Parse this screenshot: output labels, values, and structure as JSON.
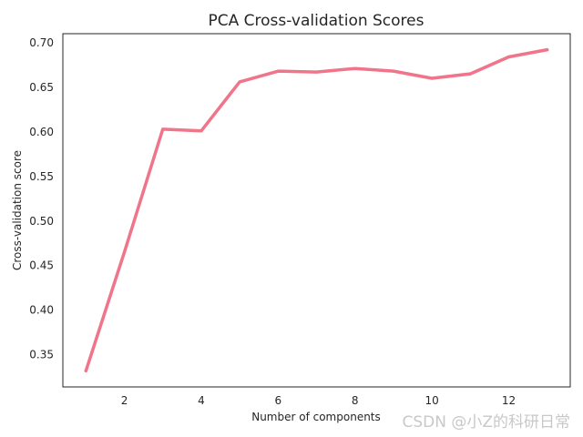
{
  "chart_data": {
    "type": "line",
    "title": "PCA Cross-validation Scores",
    "xlabel": "Number of components",
    "ylabel": "Cross-validation score",
    "x": [
      1,
      2,
      3,
      4,
      5,
      6,
      7,
      8,
      9,
      10,
      11,
      12,
      13
    ],
    "series": [
      {
        "values": [
          0.332,
          0.465,
          0.603,
          0.601,
          0.656,
          0.668,
          0.667,
          0.671,
          0.668,
          0.66,
          0.665,
          0.684,
          0.692
        ],
        "color": "#f0748a"
      }
    ],
    "xticks": [
      2,
      4,
      6,
      8,
      10,
      12
    ],
    "xtick_labels": [
      "2",
      "4",
      "6",
      "8",
      "10",
      "12"
    ],
    "yticks": [
      0.35,
      0.4,
      0.45,
      0.5,
      0.55,
      0.6,
      0.65,
      0.7
    ],
    "ytick_labels": [
      "0.35",
      "0.40",
      "0.45",
      "0.50",
      "0.55",
      "0.60",
      "0.65",
      "0.70"
    ],
    "xlim": [
      0.4,
      13.6
    ],
    "ylim": [
      0.314,
      0.71
    ],
    "grid": false,
    "legend": "none"
  },
  "watermark": "CSDN @小Z的科研日常"
}
